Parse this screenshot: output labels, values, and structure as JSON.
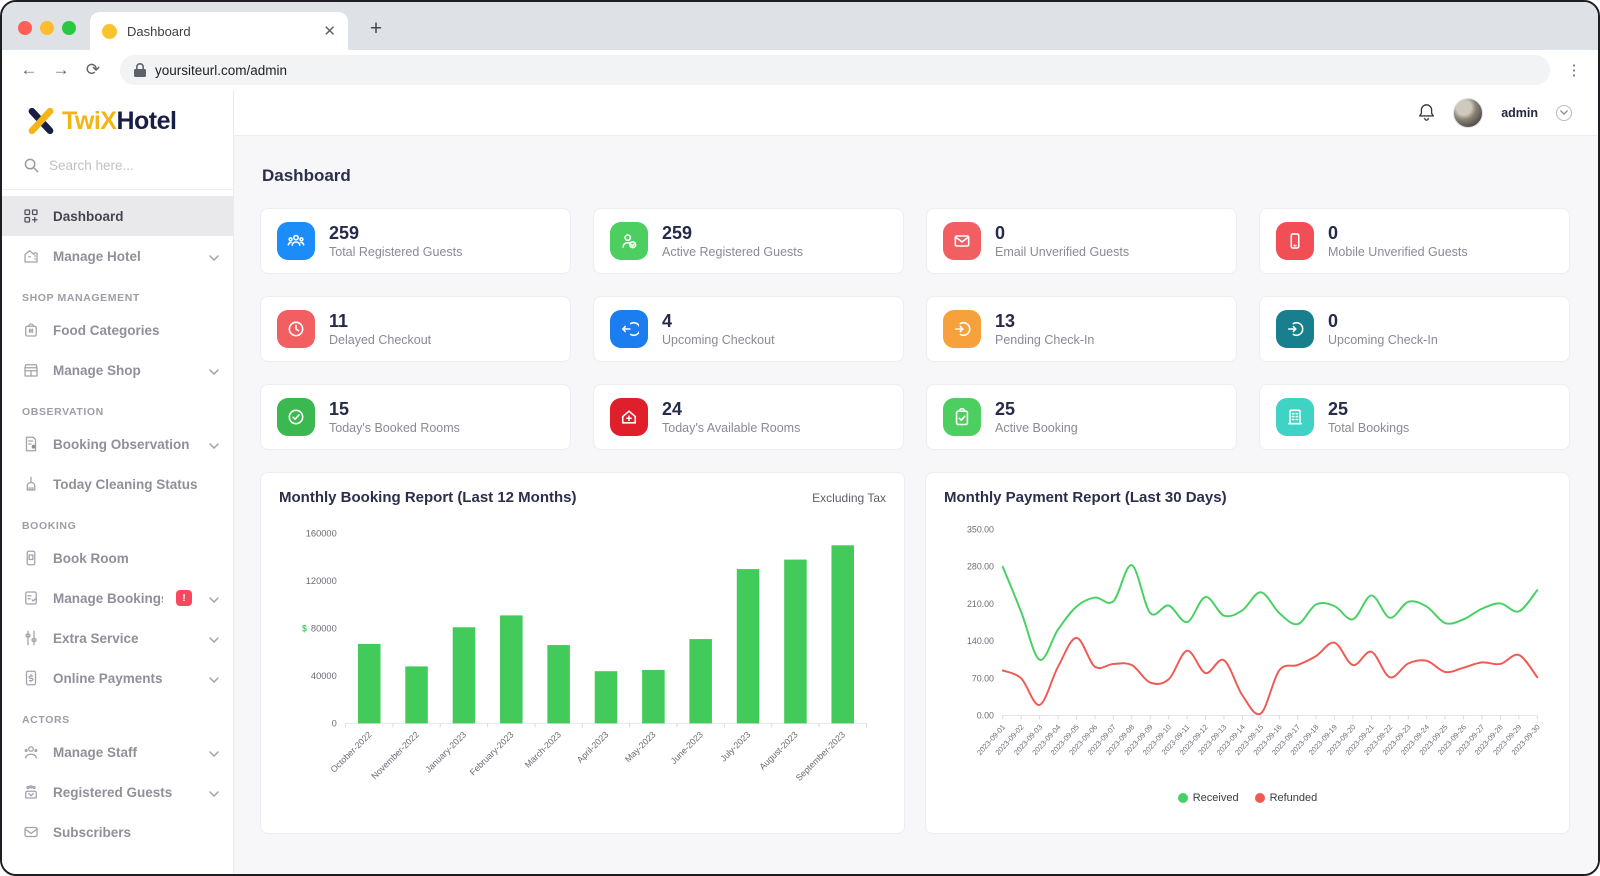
{
  "browser": {
    "tab_title": "Dashboard",
    "close_label": "✕",
    "new_tab_label": "+",
    "back_label": "←",
    "forward_label": "→",
    "reload_label": "⟳",
    "url": "yoursiteurl.com/admin",
    "menu_label": "⋮"
  },
  "sidebar": {
    "logo": {
      "part1": "TwiX",
      "part2": "Hotel"
    },
    "search_placeholder": "Search here...",
    "menu": [
      {
        "type": "item",
        "label": "Dashboard",
        "icon": "dashboard-icon",
        "active": true,
        "chevron": false
      },
      {
        "type": "item",
        "label": "Manage Hotel",
        "icon": "hotel-icon",
        "chevron": true
      },
      {
        "type": "heading",
        "label": "Shop Management"
      },
      {
        "type": "item",
        "label": "Food Categories",
        "icon": "food-icon",
        "chevron": false
      },
      {
        "type": "item",
        "label": "Manage Shop",
        "icon": "shop-icon",
        "chevron": true
      },
      {
        "type": "heading",
        "label": "Observation"
      },
      {
        "type": "item",
        "label": "Booking Observation",
        "icon": "observation-icon",
        "chevron": true
      },
      {
        "type": "item",
        "label": "Today Cleaning Status",
        "icon": "cleaning-icon",
        "chevron": false
      },
      {
        "type": "heading",
        "label": "Booking"
      },
      {
        "type": "item",
        "label": "Book Room",
        "icon": "book-room-icon",
        "chevron": false
      },
      {
        "type": "item",
        "label": "Manage Bookings",
        "icon": "bookings-icon",
        "badge": "!",
        "chevron": true
      },
      {
        "type": "item",
        "label": "Extra Service",
        "icon": "extra-service-icon",
        "chevron": true
      },
      {
        "type": "item",
        "label": "Online Payments",
        "icon": "payments-icon",
        "chevron": true
      },
      {
        "type": "heading",
        "label": "Actors"
      },
      {
        "type": "item",
        "label": "Manage Staff",
        "icon": "staff-icon",
        "chevron": true
      },
      {
        "type": "item",
        "label": "Registered Guests",
        "icon": "guests-icon",
        "chevron": true
      },
      {
        "type": "item",
        "label": "Subscribers",
        "icon": "subscribers-icon",
        "chevron": false
      }
    ]
  },
  "header": {
    "user_name": "admin"
  },
  "page": {
    "title": "Dashboard"
  },
  "stats": [
    {
      "value": "259",
      "label": "Total Registered Guests",
      "icon": "users-icon",
      "color": "#1b8cf8"
    },
    {
      "value": "259",
      "label": "Active Registered Guests",
      "icon": "user-check-icon",
      "color": "#4ccf60"
    },
    {
      "value": "0",
      "label": "Email Unverified Guests",
      "icon": "envelope-icon",
      "color": "#f15f63"
    },
    {
      "value": "0",
      "label": "Mobile Unverified Guests",
      "icon": "smartphone-icon",
      "color": "#f14f55"
    },
    {
      "value": "11",
      "label": "Delayed Checkout",
      "icon": "clock-icon",
      "color": "#f15f63"
    },
    {
      "value": "4",
      "label": "Upcoming Checkout",
      "icon": "checkout-arrow-icon",
      "color": "#1b7df0"
    },
    {
      "value": "13",
      "label": "Pending Check-In",
      "icon": "checkin-arrow-icon",
      "color": "#f6a13c"
    },
    {
      "value": "0",
      "label": "Upcoming Check-In",
      "icon": "checkin-arrow-icon",
      "color": "#177f8e"
    },
    {
      "value": "15",
      "label": "Today's Booked Rooms",
      "icon": "check-circle-icon",
      "color": "#3bb84f"
    },
    {
      "value": "24",
      "label": "Today's Available Rooms",
      "icon": "home-plus-icon",
      "color": "#e01f2d"
    },
    {
      "value": "25",
      "label": "Active Booking",
      "icon": "clipboard-check-icon",
      "color": "#4ccf60"
    },
    {
      "value": "25",
      "label": "Total Bookings",
      "icon": "building-icon",
      "color": "#3ed3c4"
    }
  ],
  "chart_data": [
    {
      "type": "bar",
      "title": "Monthly Booking Report (Last 12 Months)",
      "note": "Excluding Tax",
      "categories": [
        "October-2022",
        "November-2022",
        "January-2023",
        "February-2023",
        "March-2023",
        "April-2023",
        "May-2023",
        "June-2023",
        "July-2023",
        "August-2023",
        "September-2023"
      ],
      "values": [
        67000,
        48000,
        81000,
        91000,
        66000,
        44000,
        45000,
        71000,
        130000,
        138000,
        150000
      ],
      "ylim": [
        0,
        160000
      ],
      "yticks": [
        0,
        40000,
        80000,
        120000,
        160000
      ],
      "bar_color": "#42ca5b",
      "grid": false,
      "y_axis_icon": "currency-icon",
      "y_axis_icon_color": "#42ca5b"
    },
    {
      "type": "line",
      "title": "Monthly Payment Report (Last 30 Days)",
      "categories": [
        "2023-09-01",
        "2023-09-02",
        "2023-09-03",
        "2023-09-04",
        "2023-09-05",
        "2023-09-06",
        "2023-09-07",
        "2023-09-08",
        "2023-09-09",
        "2023-09-10",
        "2023-09-11",
        "2023-09-12",
        "2023-09-13",
        "2023-09-14",
        "2023-09-15",
        "2023-09-16",
        "2023-09-17",
        "2023-09-18",
        "2023-09-19",
        "2023-09-20",
        "2023-09-21",
        "2023-09-22",
        "2023-09-23",
        "2023-09-24",
        "2023-09-25",
        "2023-09-26",
        "2023-09-27",
        "2023-09-28",
        "2023-09-29",
        "2023-09-30"
      ],
      "series": [
        {
          "name": "Received",
          "color": "#47d164",
          "values": [
            280,
            195,
            105,
            162,
            205,
            222,
            215,
            283,
            193,
            207,
            176,
            223,
            188,
            198,
            232,
            193,
            172,
            209,
            206,
            181,
            226,
            184,
            214,
            205,
            174,
            181,
            201,
            211,
            196,
            236
          ]
        },
        {
          "name": "Refunded",
          "color": "#f05a54",
          "values": [
            85,
            70,
            20,
            92,
            146,
            92,
            97,
            95,
            62,
            68,
            122,
            80,
            104,
            38,
            4,
            85,
            95,
            112,
            137,
            95,
            120,
            72,
            98,
            103,
            82,
            90,
            100,
            97,
            114,
            72
          ]
        }
      ],
      "ylim": [
        0,
        350
      ],
      "yticks": [
        0,
        70,
        140,
        210,
        280,
        350
      ],
      "grid": false,
      "legend_position": "bottom"
    }
  ]
}
